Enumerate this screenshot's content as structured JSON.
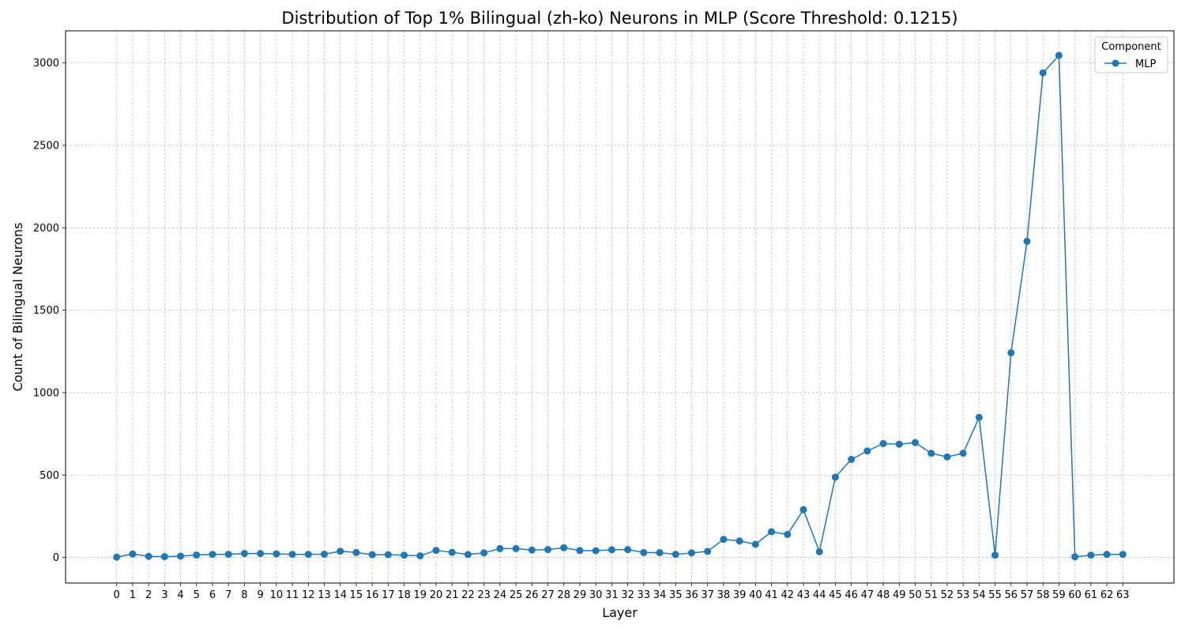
{
  "chart_data": {
    "type": "line",
    "title": "Distribution of Top 1% Bilingual (zh-ko) Neurons in MLP (Score Threshold: 0.1215)",
    "xlabel": "Layer",
    "ylabel": "Count of Bilingual Neurons",
    "x": [
      0,
      1,
      2,
      3,
      4,
      5,
      6,
      7,
      8,
      9,
      10,
      11,
      12,
      13,
      14,
      15,
      16,
      17,
      18,
      19,
      20,
      21,
      22,
      23,
      24,
      25,
      26,
      27,
      28,
      29,
      30,
      31,
      32,
      33,
      34,
      35,
      36,
      37,
      38,
      39,
      40,
      41,
      42,
      43,
      44,
      45,
      46,
      47,
      48,
      49,
      50,
      51,
      52,
      53,
      54,
      55,
      56,
      57,
      58,
      59,
      60,
      61,
      62,
      63
    ],
    "xlim": [
      -3.2,
      66.2
    ],
    "ylim": [
      -155,
      3195
    ],
    "yticks": [
      0,
      500,
      1000,
      1500,
      2000,
      2500,
      3000
    ],
    "grid": true,
    "legend": {
      "title": "Component",
      "placement": "top-right"
    },
    "series": [
      {
        "name": "MLP",
        "color": "#1f77b4",
        "marker": "circle",
        "values": [
          2,
          21,
          7,
          5,
          8,
          15,
          19,
          19,
          24,
          24,
          22,
          19,
          19,
          20,
          38,
          30,
          17,
          17,
          14,
          10,
          43,
          31,
          18,
          28,
          54,
          54,
          45,
          48,
          59,
          42,
          41,
          47,
          48,
          30,
          29,
          19,
          28,
          37,
          110,
          100,
          80,
          156,
          140,
          290,
          35,
          487,
          595,
          646,
          691,
          687,
          697,
          632,
          610,
          632,
          850,
          14,
          1242,
          1918,
          2940,
          3046,
          4,
          14,
          19,
          19
        ]
      }
    ]
  }
}
